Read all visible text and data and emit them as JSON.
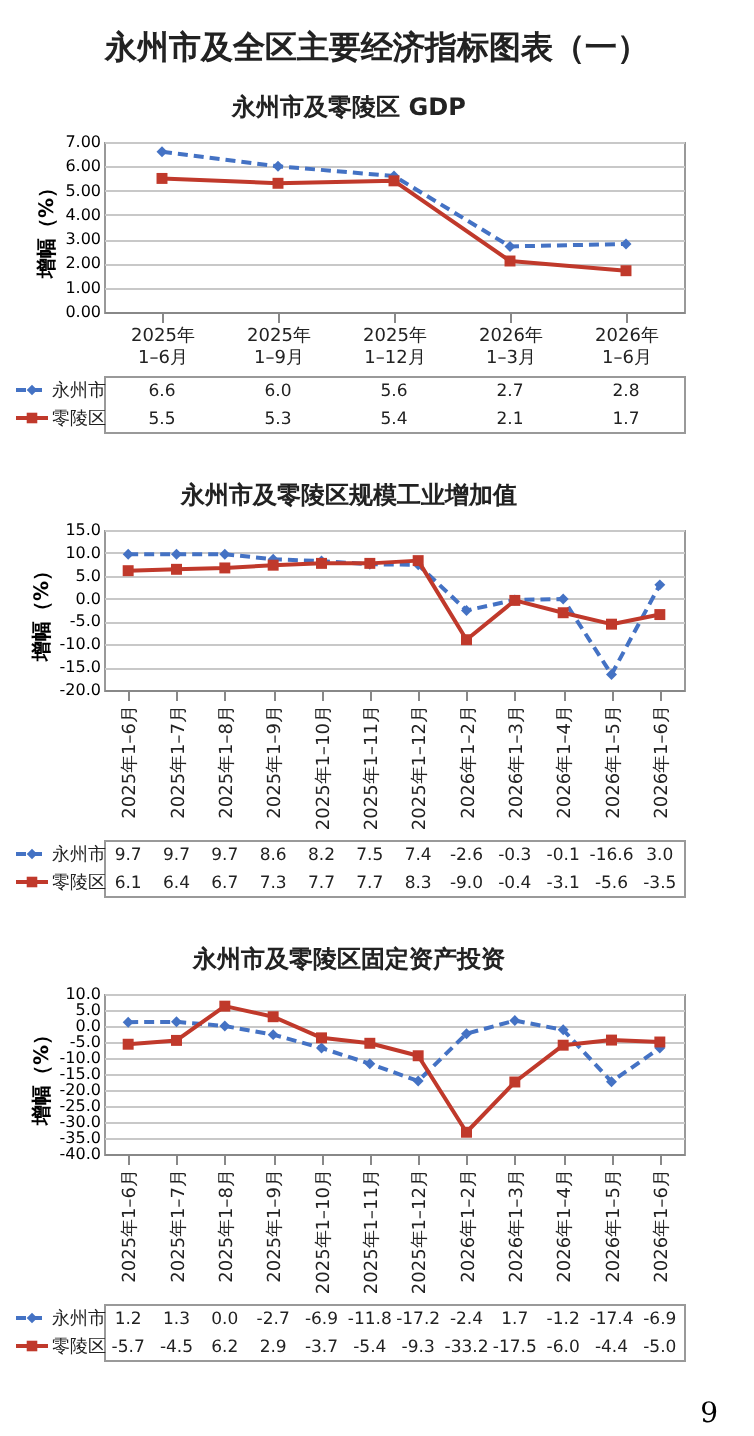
{
  "chart_data": [
    {
      "type": "other",
      "title": "永州市及全区主要经济指标图表（一）",
      "annotations": [
        "9"
      ]
    },
    {
      "type": "line",
      "title": "永州市及零陵区 GDP",
      "ylabel": "增幅（%）",
      "categories": [
        "2025年1–6月",
        "2025年1–9月",
        "2025年1–12月",
        "2026年1–3月",
        "2026年1–6月"
      ],
      "series": [
        {
          "name": "永州市",
          "color": "#4472c4",
          "line_style": "dashed",
          "marker": "diamond",
          "values": [
            6.6,
            6.0,
            5.6,
            2.7,
            2.8
          ],
          "value_labels": [
            "6.6",
            "6.0",
            "5.6",
            "2.7",
            "2.8"
          ]
        },
        {
          "name": "零陵区",
          "color": "#c0392b",
          "line_style": "solid",
          "marker": "square",
          "values": [
            5.5,
            5.3,
            5.4,
            2.1,
            1.7
          ],
          "value_labels": [
            "5.5",
            "5.3",
            "5.4",
            "2.1",
            "1.7"
          ]
        }
      ],
      "ylim": [
        0,
        7
      ],
      "yticks": [
        {
          "value": 0,
          "label": "0.00"
        },
        {
          "value": 1,
          "label": "1.00"
        },
        {
          "value": 2,
          "label": "2.00"
        },
        {
          "value": 3,
          "label": "3.00"
        },
        {
          "value": 4,
          "label": "4.00"
        },
        {
          "value": 5,
          "label": "5.00"
        },
        {
          "value": 6,
          "label": "6.00"
        },
        {
          "value": 7,
          "label": "7.00"
        }
      ],
      "grid": "y",
      "legend": "bottom left"
    },
    {
      "type": "line",
      "title": "永州市及零陵区规模工业增加值",
      "ylabel": "增幅（%）",
      "categories": [
        "2025年1–6月",
        "2025年1–7月",
        "2025年1–8月",
        "2025年1–9月",
        "2025年1–10月",
        "2025年1–11月",
        "2025年1–12月",
        "2026年1–2月",
        "2026年1–3月",
        "2026年1–4月",
        "2026年1–5月",
        "2026年1–6月"
      ],
      "series": [
        {
          "name": "永州市",
          "color": "#4472c4",
          "line_style": "dashed",
          "marker": "diamond",
          "values": [
            9.7,
            9.7,
            9.7,
            8.6,
            8.2,
            7.5,
            7.4,
            -2.6,
            -0.3,
            -0.1,
            -16.6,
            3.0
          ],
          "value_labels": [
            "9.7",
            "9.7",
            "9.7",
            "8.6",
            "8.2",
            "7.5",
            "7.4",
            "-2.6",
            "-0.3",
            "-0.1",
            "-16.6",
            "3.0"
          ]
        },
        {
          "name": "零陵区",
          "color": "#c0392b",
          "line_style": "solid",
          "marker": "square",
          "values": [
            6.1,
            6.4,
            6.7,
            7.3,
            7.7,
            7.7,
            8.3,
            -9.0,
            -0.4,
            -3.1,
            -5.6,
            -3.5
          ],
          "value_labels": [
            "6.1",
            "6.4",
            "6.7",
            "7.3",
            "7.7",
            "7.7",
            "8.3",
            "-9.0",
            "-0.4",
            "-3.1",
            "-5.6",
            "-3.5"
          ]
        }
      ],
      "ylim": [
        -20,
        15
      ],
      "yticks": [
        {
          "value": -20,
          "label": "-20.0"
        },
        {
          "value": -15,
          "label": "-15.0"
        },
        {
          "value": -10,
          "label": "-10.0"
        },
        {
          "value": -5,
          "label": "-5.0"
        },
        {
          "value": 0,
          "label": "0.0"
        },
        {
          "value": 5,
          "label": "5.0"
        },
        {
          "value": 10,
          "label": "10.0"
        },
        {
          "value": 15,
          "label": "15.0"
        }
      ],
      "grid": "y",
      "legend": "bottom left"
    },
    {
      "type": "line",
      "title": "永州市及零陵区固定资产投资",
      "ylabel": "增幅（%）",
      "categories": [
        "2025年1–6月",
        "2025年1–7月",
        "2025年1–8月",
        "2025年1–9月",
        "2025年1–10月",
        "2025年1–11月",
        "2025年1–12月",
        "2026年1–2月",
        "2026年1–3月",
        "2026年1–4月",
        "2026年1–5月",
        "2026年1–6月"
      ],
      "series": [
        {
          "name": "永州市",
          "color": "#4472c4",
          "line_style": "dashed",
          "marker": "diamond",
          "values": [
            1.2,
            1.3,
            0.0,
            -2.7,
            -6.9,
            -11.8,
            -17.2,
            -2.4,
            1.7,
            -1.2,
            -17.4,
            -6.9
          ],
          "value_labels": [
            "1.2",
            "1.3",
            "0.0",
            "-2.7",
            "-6.9",
            "-11.8",
            "-17.2",
            "-2.4",
            "1.7",
            "-1.2",
            "-17.4",
            "-6.9"
          ]
        },
        {
          "name": "零陵区",
          "color": "#c0392b",
          "line_style": "solid",
          "marker": "square",
          "values": [
            -5.7,
            -4.5,
            6.2,
            2.9,
            -3.7,
            -5.4,
            -9.3,
            -33.2,
            -17.5,
            -6.0,
            -4.4,
            -5.0
          ],
          "value_labels": [
            "-5.7",
            "-4.5",
            "6.2",
            "2.9",
            "-3.7",
            "-5.4",
            "-9.3",
            "-33.2",
            "-17.5",
            "-6.0",
            "-4.4",
            "-5.0"
          ]
        }
      ],
      "ylim": [
        -40,
        10
      ],
      "yticks": [
        {
          "value": -40,
          "label": "-40.0"
        },
        {
          "value": -35,
          "label": "-35.0"
        },
        {
          "value": -30,
          "label": "-30.0"
        },
        {
          "value": -25,
          "label": "-25.0"
        },
        {
          "value": -20,
          "label": "-20.0"
        },
        {
          "value": -15,
          "label": "-15.0"
        },
        {
          "value": -10,
          "label": "-10.0"
        },
        {
          "value": -5,
          "label": "-5.0"
        },
        {
          "value": 0,
          "label": "0.0"
        },
        {
          "value": 5,
          "label": "5.0"
        },
        {
          "value": 10,
          "label": "10.0"
        }
      ],
      "grid": "y",
      "legend": "bottom left"
    }
  ]
}
